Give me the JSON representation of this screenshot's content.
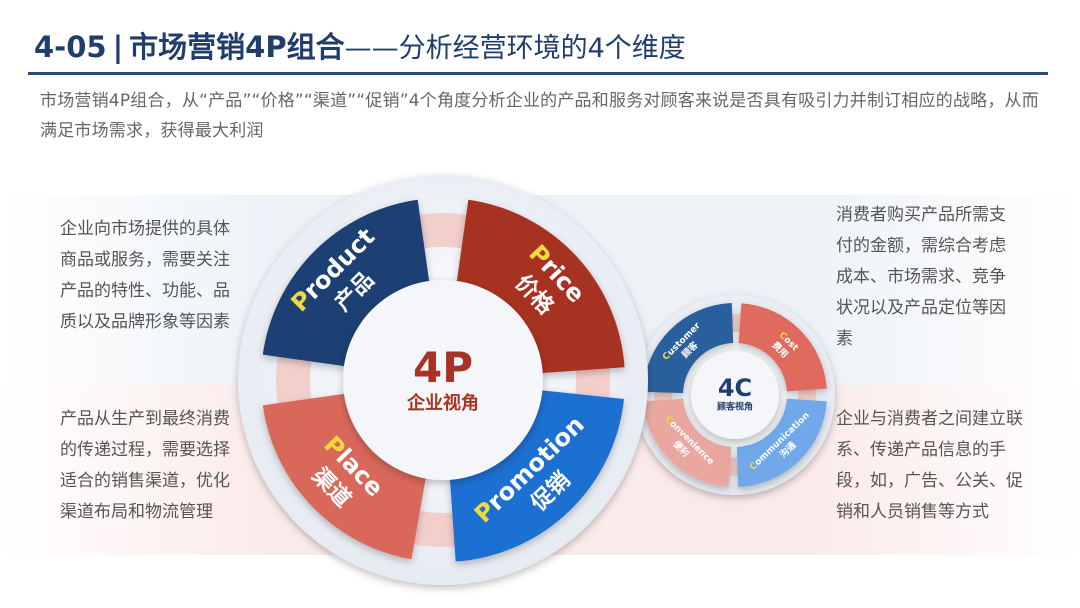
{
  "header": {
    "number": "4-05",
    "divider": "|",
    "title": "市场营销4P组合",
    "dash": "——",
    "subtitle": "分析经营环境的4个维度"
  },
  "intro": "市场营销4P组合，从“产品”“价格”“渠道”“促销”4个角度分析企业的产品和服务对顾客来说是否具有吸引力并制订相应的战略，从而满足市场需求，获得最大利润",
  "descriptions": {
    "product": "企业向市场提供的具体商品或服务，需要关注产品的特性、功能、品质以及品牌形象等因素",
    "place": "产品从生产到最终消费的传递过程，需要选择适合的销售渠道，优化渠道布局和物流管理",
    "price": "消费者购买产品所需支付的金额，需综合考虑成本、市场需求、竞争状况以及产品定位等因素",
    "promotion": "企业与消费者之间建立联系、传递产品信息的手段，如，广告、公关、促销和人员销售等方式"
  },
  "four_p": {
    "center_big": "4P",
    "center_small": "企业视角",
    "segments": [
      {
        "key": "product",
        "initial": "P",
        "rest": "roduct",
        "cn": "产品",
        "color": "#1e3f73"
      },
      {
        "key": "price",
        "initial": "P",
        "rest": "rice",
        "cn": "价格",
        "color": "#a83224"
      },
      {
        "key": "place",
        "initial": "P",
        "rest": "lace",
        "cn": "渠道",
        "color": "#d9675a"
      },
      {
        "key": "promotion",
        "initial": "P",
        "rest": "romotion",
        "cn": "促销",
        "color": "#1f6fd1"
      }
    ]
  },
  "four_c": {
    "center_big": "4C",
    "center_small": "顾客视角",
    "segments": [
      {
        "key": "customer",
        "initial": "C",
        "rest": "ustomer",
        "cn": "顾客",
        "color": "#2c5f9e"
      },
      {
        "key": "cost",
        "initial": "C",
        "rest": "ost",
        "cn": "费用",
        "color": "#e06b5d"
      },
      {
        "key": "convenience",
        "initial": "C",
        "rest": "onvenience",
        "cn": "便利",
        "color": "#e9a79f"
      },
      {
        "key": "communication",
        "initial": "C",
        "rest": "ommunication",
        "cn": "沟通",
        "color": "#6fa8ea"
      }
    ]
  },
  "colors": {
    "title": "#1f3d6d",
    "accent_yellow": "#f2d93c",
    "center_red": "#a83224"
  }
}
